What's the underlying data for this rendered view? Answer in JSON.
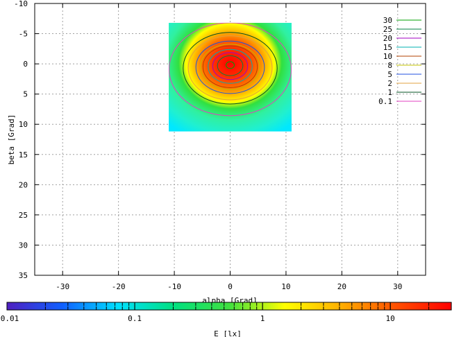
{
  "chart_data": {
    "type": "heatmap",
    "title": "",
    "xlabel": "alpha [Grad]",
    "ylabel": "beta [Grad]",
    "xlim": [
      -35,
      35
    ],
    "ylim": [
      -10,
      35
    ],
    "y_inverted": true,
    "grid": true,
    "x_ticks": [
      -30,
      -20,
      -10,
      0,
      10,
      20,
      30
    ],
    "y_ticks": [
      -10,
      -5,
      0,
      5,
      10,
      15,
      20,
      25,
      30,
      35
    ],
    "x_tick_labels": [
      "-30",
      "-20",
      "-10",
      "0",
      "10",
      "20",
      "30"
    ],
    "y_tick_labels": [
      "-10",
      "-5",
      "0",
      "5",
      "10",
      "15",
      "20",
      "25",
      "30",
      "35"
    ],
    "heatmap_extent": {
      "alpha": [
        -11,
        11
      ],
      "beta": [
        -6.8,
        11.2
      ]
    },
    "peak": {
      "alpha": 0,
      "beta": 0.2,
      "value": 30
    },
    "contour_levels": [
      {
        "label": "30",
        "value": 30,
        "color": "#00a000"
      },
      {
        "label": "25",
        "value": 25,
        "color": "#008040"
      },
      {
        "label": "20",
        "value": 20,
        "color": "#a000c0"
      },
      {
        "label": "15",
        "value": 15,
        "color": "#00b0b0"
      },
      {
        "label": "10",
        "value": 10,
        "color": "#b04000"
      },
      {
        "label": "8",
        "value": 8,
        "color": "#c0c000"
      },
      {
        "label": "5",
        "value": 5,
        "color": "#2050e0"
      },
      {
        "label": "2",
        "value": 2,
        "color": "#e0a040"
      },
      {
        "label": "1",
        "value": 1,
        "color": "#005020"
      },
      {
        "label": "0.1",
        "value": 0.1,
        "color": "#e040c0"
      }
    ],
    "legend_position": "top-right",
    "colorbar": {
      "label": "E [lx]",
      "scale": "log",
      "range": [
        0.01,
        30
      ],
      "tick_labels": [
        "0.01",
        "0.1",
        "1",
        "10"
      ],
      "tick_values": [
        0.01,
        0.1,
        1,
        10
      ],
      "colors": [
        "#5020c0",
        "#1060ff",
        "#00e0ff",
        "#00e080",
        "#40e040",
        "#ffff00",
        "#ffb000",
        "#ff5000",
        "#ff0000"
      ]
    }
  }
}
